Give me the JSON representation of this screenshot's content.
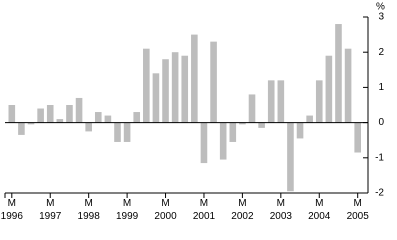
{
  "chart_data": {
    "type": "bar",
    "y_axis_label": "%",
    "categories": [
      "M 1996",
      null,
      null,
      null,
      "M 1997",
      null,
      null,
      null,
      "M 1998",
      null,
      null,
      null,
      "M 1999",
      null,
      null,
      null,
      "M 2000",
      null,
      null,
      null,
      "M 2001",
      null,
      null,
      null,
      "M 2002",
      null,
      null,
      null,
      "M 2003",
      null,
      null,
      null,
      "M 2004",
      null,
      null,
      null,
      "M 2005"
    ],
    "values": [
      0.5,
      -0.35,
      -0.05,
      0.4,
      0.5,
      0.1,
      0.5,
      0.7,
      -0.25,
      0.3,
      0.2,
      -0.55,
      -0.55,
      0.3,
      2.1,
      1.4,
      1.8,
      2.0,
      1.9,
      2.5,
      -1.15,
      2.3,
      -1.05,
      -0.55,
      -0.05,
      0.8,
      -0.15,
      1.2,
      1.2,
      -1.95,
      -0.45,
      0.2,
      1.2,
      1.9,
      2.8,
      2.1,
      -0.85
    ],
    "color": "#bdbdbd",
    "ylim": [
      -2,
      3
    ],
    "yticks": [
      -2,
      -1,
      0,
      1,
      2,
      3
    ]
  }
}
